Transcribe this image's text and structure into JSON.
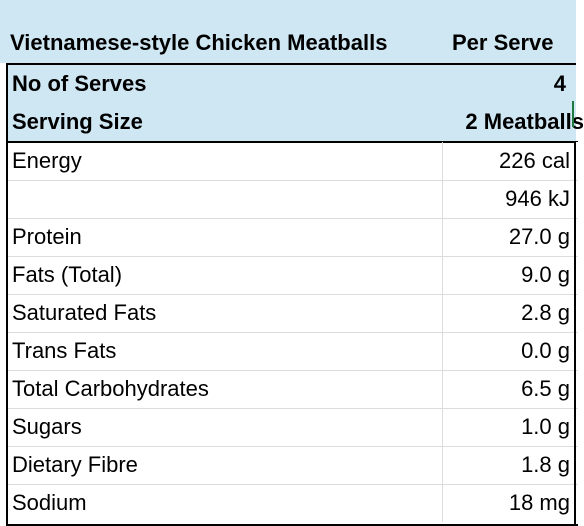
{
  "header": {
    "title": "Vietnamese-style Chicken Meatballs",
    "per_label": "Per Serve"
  },
  "serves": {
    "rows": [
      {
        "label": "No of Serves",
        "value": "4"
      },
      {
        "label": "Serving Size",
        "value": "2 Meatballs"
      }
    ]
  },
  "nutrition": [
    {
      "label": "Energy",
      "value": "226 cal"
    },
    {
      "label": "",
      "value": "946 kJ"
    },
    {
      "label": "Protein",
      "value": "27.0 g"
    },
    {
      "label": "Fats (Total)",
      "value": "9.0 g"
    },
    {
      "label": "Saturated Fats",
      "value": "2.8 g"
    },
    {
      "label": "Trans Fats",
      "value": "0.0 g"
    },
    {
      "label": "Total Carbohydrates",
      "value": "6.5 g"
    },
    {
      "label": "Sugars",
      "value": "1.0 g"
    },
    {
      "label": "Dietary Fibre",
      "value": "1.8 g"
    },
    {
      "label": "Sodium",
      "value": "18 mg"
    }
  ],
  "colors": {
    "header_bg": "#cfe7f3",
    "selection_green": "#1e7a3e"
  }
}
